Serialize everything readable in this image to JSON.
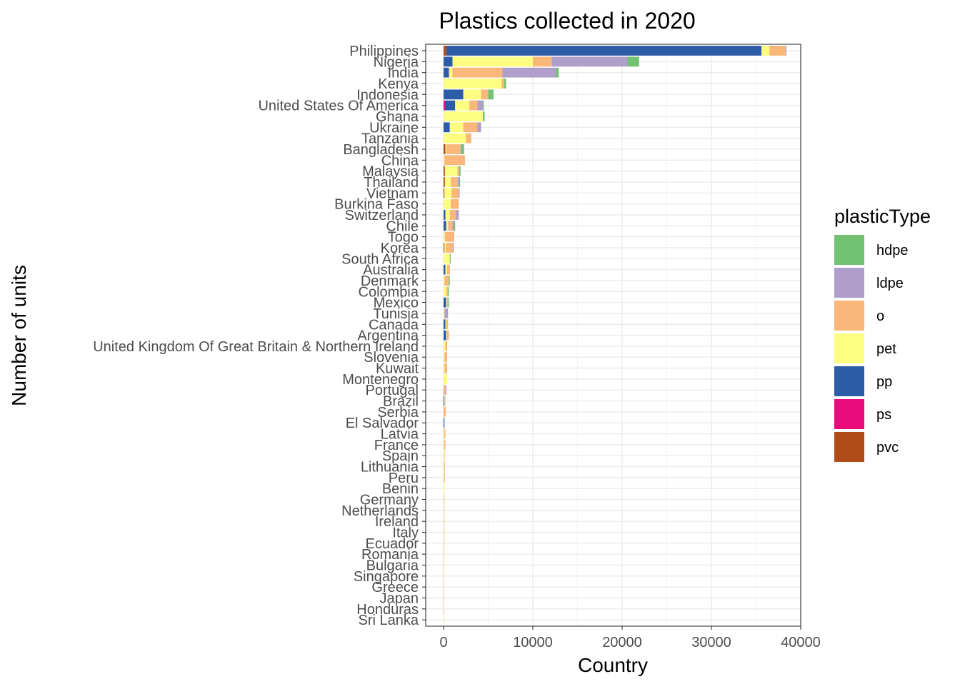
{
  "chart_data": {
    "type": "bar",
    "orientation": "horizontal",
    "stacked": true,
    "title": "Plastics collected in 2020",
    "xlabel": "Country",
    "ylabel": "Number of units",
    "xlim": [
      -2000,
      40000
    ],
    "x_ticks": [
      0,
      10000,
      20000,
      30000,
      40000
    ],
    "x_tick_labels": [
      "0",
      "10000",
      "20000",
      "30000",
      "40000"
    ],
    "grid": true,
    "legend_title": "plasticType",
    "legend_position": "right",
    "stack_order": [
      "pvc",
      "ps",
      "pp",
      "pet",
      "o",
      "ldpe",
      "hdpe"
    ],
    "plastic_types": [
      {
        "key": "hdpe",
        "label": "hdpe",
        "color": "#73C172"
      },
      {
        "key": "ldpe",
        "label": "ldpe",
        "color": "#B09FCB"
      },
      {
        "key": "o",
        "label": "o",
        "color": "#F9B779"
      },
      {
        "key": "pet",
        "label": "pet",
        "color": "#FDFD81"
      },
      {
        "key": "pp",
        "label": "pp",
        "color": "#2D5CA7"
      },
      {
        "key": "ps",
        "label": "ps",
        "color": "#EA0B7C"
      },
      {
        "key": "pvc",
        "label": "pvc",
        "color": "#B14B18"
      }
    ],
    "categories": [
      "Philippines",
      "Nigeria",
      "India",
      "Kenya",
      "Indonesia",
      "United States Of America",
      "Ghana",
      "Ukraine",
      "Tanzania",
      "Bangladesh",
      "China",
      "Malaysia",
      "Thailand",
      "Vietnam",
      "Burkina Faso",
      "Switzerland",
      "Chile",
      "Togo",
      "Korea",
      "South Africa",
      "Australia",
      "Denmark",
      "Colombia",
      "Mexico",
      "Tunisia",
      "Canada",
      "Argentina",
      "United Kingdom Of Great Britain & Northern Ireland",
      "Slovenia",
      "Kuwait",
      "Montenegro",
      "Portugal",
      "Brazil",
      "Serbia",
      "El Salvador",
      "Latvia",
      "France",
      "Spain",
      "Lithuania",
      "Peru",
      "Benin",
      "Germany",
      "Netherlands",
      "Ireland",
      "Italy",
      "Ecuador",
      "Romania",
      "Bulgaria",
      "Singapore",
      "Greece",
      "Japan",
      "Honduras",
      "Sri Lanka"
    ],
    "values": [
      {
        "pvc": 300,
        "ps": 0,
        "pp": 35300,
        "pet": 900,
        "o": 1800,
        "ldpe": 100,
        "hdpe": 0
      },
      {
        "pvc": 0,
        "ps": 0,
        "pp": 1000,
        "pet": 9000,
        "o": 2100,
        "ldpe": 8500,
        "hdpe": 1300
      },
      {
        "pvc": 0,
        "ps": 0,
        "pp": 600,
        "pet": 400,
        "o": 5600,
        "ldpe": 6000,
        "hdpe": 300
      },
      {
        "pvc": 0,
        "ps": 0,
        "pp": 0,
        "pet": 6500,
        "o": 300,
        "ldpe": 0,
        "hdpe": 200
      },
      {
        "pvc": 0,
        "ps": 0,
        "pp": 2200,
        "pet": 2000,
        "o": 800,
        "ldpe": 0,
        "hdpe": 600
      },
      {
        "pvc": 0,
        "ps": 200,
        "pp": 1100,
        "pet": 1600,
        "o": 900,
        "ldpe": 600,
        "hdpe": 100
      },
      {
        "pvc": 0,
        "ps": 0,
        "pp": 0,
        "pet": 4400,
        "o": 0,
        "ldpe": 0,
        "hdpe": 200
      },
      {
        "pvc": 0,
        "ps": 0,
        "pp": 700,
        "pet": 1500,
        "o": 1600,
        "ldpe": 400,
        "hdpe": 0
      },
      {
        "pvc": 0,
        "ps": 0,
        "pp": 0,
        "pet": 2500,
        "o": 600,
        "ldpe": 0,
        "hdpe": 0
      },
      {
        "pvc": 200,
        "ps": 0,
        "pp": 0,
        "pet": 100,
        "o": 1600,
        "ldpe": 100,
        "hdpe": 300
      },
      {
        "pvc": 0,
        "ps": 0,
        "pp": 0,
        "pet": 100,
        "o": 2300,
        "ldpe": 0,
        "hdpe": 0
      },
      {
        "pvc": 150,
        "ps": 0,
        "pp": 0,
        "pet": 1400,
        "o": 200,
        "ldpe": 0,
        "hdpe": 150
      },
      {
        "pvc": 150,
        "ps": 0,
        "pp": 0,
        "pet": 650,
        "o": 800,
        "ldpe": 100,
        "hdpe": 150
      },
      {
        "pvc": 100,
        "ps": 0,
        "pp": 0,
        "pet": 800,
        "o": 800,
        "ldpe": 100,
        "hdpe": 0
      },
      {
        "pvc": 0,
        "ps": 0,
        "pp": 0,
        "pet": 800,
        "o": 900,
        "ldpe": 0,
        "hdpe": 0
      },
      {
        "pvc": 0,
        "ps": 0,
        "pp": 200,
        "pet": 500,
        "o": 700,
        "ldpe": 300,
        "hdpe": 0
      },
      {
        "pvc": 0,
        "ps": 0,
        "pp": 300,
        "pet": 200,
        "o": 500,
        "ldpe": 200,
        "hdpe": 100
      },
      {
        "pvc": 0,
        "ps": 0,
        "pp": 0,
        "pet": 150,
        "o": 1050,
        "ldpe": 0,
        "hdpe": 0
      },
      {
        "pvc": 100,
        "ps": 0,
        "pp": 0,
        "pet": 150,
        "o": 800,
        "ldpe": 100,
        "hdpe": 0
      },
      {
        "pvc": 0,
        "ps": 0,
        "pp": 0,
        "pet": 700,
        "o": 0,
        "ldpe": 0,
        "hdpe": 100
      },
      {
        "pvc": 0,
        "ps": 0,
        "pp": 200,
        "pet": 200,
        "o": 300,
        "ldpe": 0,
        "hdpe": 0
      },
      {
        "pvc": 0,
        "ps": 0,
        "pp": 0,
        "pet": 100,
        "o": 500,
        "ldpe": 0,
        "hdpe": 100
      },
      {
        "pvc": 0,
        "ps": 0,
        "pp": 0,
        "pet": 300,
        "o": 200,
        "ldpe": 0,
        "hdpe": 100
      },
      {
        "pvc": 0,
        "ps": 0,
        "pp": 300,
        "pet": 100,
        "o": 100,
        "ldpe": 0,
        "hdpe": 100
      },
      {
        "pvc": 0,
        "ps": 0,
        "pp": 0,
        "pet": 100,
        "o": 0,
        "ldpe": 400,
        "hdpe": 0
      },
      {
        "pvc": 0,
        "ps": 0,
        "pp": 200,
        "pet": 100,
        "o": 200,
        "ldpe": 0,
        "hdpe": 0
      },
      {
        "pvc": 0,
        "ps": 0,
        "pp": 300,
        "pet": 100,
        "o": 200,
        "ldpe": 0,
        "hdpe": 0
      },
      {
        "pvc": 0,
        "ps": 0,
        "pp": 0,
        "pet": 200,
        "o": 200,
        "ldpe": 0,
        "hdpe": 0
      },
      {
        "pvc": 0,
        "ps": 0,
        "pp": 0,
        "pet": 100,
        "o": 300,
        "ldpe": 0,
        "hdpe": 0
      },
      {
        "pvc": 0,
        "ps": 0,
        "pp": 0,
        "pet": 100,
        "o": 300,
        "ldpe": 0,
        "hdpe": 0
      },
      {
        "pvc": 0,
        "ps": 0,
        "pp": 0,
        "pet": 400,
        "o": 0,
        "ldpe": 0,
        "hdpe": 0
      },
      {
        "pvc": 0,
        "ps": 0,
        "pp": 0,
        "pet": 0,
        "o": 200,
        "ldpe": 100,
        "hdpe": 0
      },
      {
        "pvc": 0,
        "ps": 0,
        "pp": 100,
        "pet": 50,
        "o": 50,
        "ldpe": 0,
        "hdpe": 0
      },
      {
        "pvc": 0,
        "ps": 0,
        "pp": 0,
        "pet": 0,
        "o": 250,
        "ldpe": 0,
        "hdpe": 0
      },
      {
        "pvc": 0,
        "ps": 0,
        "pp": 100,
        "pet": 0,
        "o": 0,
        "ldpe": 0,
        "hdpe": 0
      },
      {
        "pvc": 0,
        "ps": 0,
        "pp": 0,
        "pet": 50,
        "o": 150,
        "ldpe": 0,
        "hdpe": 0
      },
      {
        "pvc": 0,
        "ps": 0,
        "pp": 0,
        "pet": 50,
        "o": 150,
        "ldpe": 0,
        "hdpe": 0
      },
      {
        "pvc": 0,
        "ps": 0,
        "pp": 0,
        "pet": 100,
        "o": 50,
        "ldpe": 0,
        "hdpe": 0
      },
      {
        "pvc": 0,
        "ps": 0,
        "pp": 0,
        "pet": 50,
        "o": 100,
        "ldpe": 0,
        "hdpe": 0
      },
      {
        "pvc": 0,
        "ps": 0,
        "pp": 0,
        "pet": 50,
        "o": 100,
        "ldpe": 0,
        "hdpe": 0
      },
      {
        "pvc": 0,
        "ps": 0,
        "pp": 0,
        "pet": 100,
        "o": 0,
        "ldpe": 0,
        "hdpe": 0
      },
      {
        "pvc": 0,
        "ps": 0,
        "pp": 0,
        "pet": 50,
        "o": 50,
        "ldpe": 0,
        "hdpe": 0
      },
      {
        "pvc": 0,
        "ps": 0,
        "pp": 0,
        "pet": 50,
        "o": 50,
        "ldpe": 0,
        "hdpe": 0
      },
      {
        "pvc": 0,
        "ps": 0,
        "pp": 0,
        "pet": 50,
        "o": 50,
        "ldpe": 0,
        "hdpe": 0
      },
      {
        "pvc": 0,
        "ps": 0,
        "pp": 0,
        "pet": 50,
        "o": 50,
        "ldpe": 0,
        "hdpe": 0
      },
      {
        "pvc": 0,
        "ps": 0,
        "pp": 0,
        "pet": 50,
        "o": 30,
        "ldpe": 0,
        "hdpe": 0
      },
      {
        "pvc": 0,
        "ps": 0,
        "pp": 0,
        "pet": 30,
        "o": 30,
        "ldpe": 0,
        "hdpe": 0
      },
      {
        "pvc": 0,
        "ps": 0,
        "pp": 0,
        "pet": 20,
        "o": 20,
        "ldpe": 0,
        "hdpe": 0
      },
      {
        "pvc": 0,
        "ps": 0,
        "pp": 0,
        "pet": 20,
        "o": 10,
        "ldpe": 0,
        "hdpe": 0
      },
      {
        "pvc": 0,
        "ps": 0,
        "pp": 0,
        "pet": 10,
        "o": 10,
        "ldpe": 0,
        "hdpe": 0
      },
      {
        "pvc": 0,
        "ps": 0,
        "pp": 0,
        "pet": 10,
        "o": 5,
        "ldpe": 0,
        "hdpe": 0
      },
      {
        "pvc": 0,
        "ps": 0,
        "pp": 0,
        "pet": 5,
        "o": 5,
        "ldpe": 0,
        "hdpe": 0
      },
      {
        "pvc": 0,
        "ps": 0,
        "pp": 0,
        "pet": 5,
        "o": 0,
        "ldpe": 0,
        "hdpe": 0
      }
    ]
  }
}
